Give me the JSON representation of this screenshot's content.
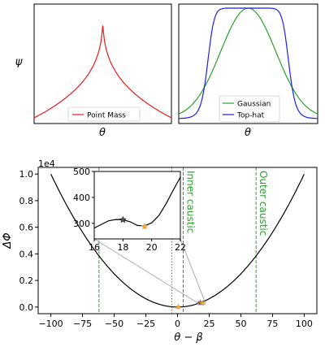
{
  "chart_data": [
    {
      "type": "line",
      "xlabel": "θ",
      "ylabel": "ψ",
      "series": [
        {
          "name": "Point Mass",
          "color": "#e41a1c",
          "profile": "cusp"
        }
      ],
      "legend_position": "bottom-center",
      "ticks": "none"
    },
    {
      "type": "line",
      "xlabel": "θ",
      "ylabel": "",
      "series": [
        {
          "name": "Gaussian",
          "color": "#2ca02c",
          "profile": "gaussian"
        },
        {
          "name": "Top-hat",
          "color": "#1f1fe0",
          "profile": "top-hat"
        }
      ],
      "legend_position": "bottom-right",
      "ticks": "none"
    },
    {
      "type": "line",
      "xlabel": "θ − β",
      "ylabel": "ΔΦ",
      "scale_label": "1e4",
      "xlim": [
        -110,
        110
      ],
      "ylim": [
        -0.05,
        1.05
      ],
      "xticks": [
        "−100",
        "−75",
        "−50",
        "−25",
        "0",
        "25",
        "50",
        "75",
        "100"
      ],
      "yticks": [
        "0.0",
        "0.2",
        "0.4",
        "0.6",
        "0.8",
        "1.0"
      ],
      "series": [
        {
          "name": "",
          "color": "#000000",
          "x": [
            -100,
            -80,
            -60,
            -40,
            -20,
            0,
            10,
            17,
            20,
            30,
            50,
            70,
            90,
            100
          ],
          "y": [
            1.0,
            0.64,
            0.36,
            0.16,
            0.04,
            0.0,
            0.01,
            0.0314,
            0.03,
            0.09,
            0.25,
            0.49,
            0.81,
            1.0
          ]
        }
      ],
      "vlines": [
        {
          "x": -62,
          "label": "",
          "color": "#2ca02c",
          "style": "dashed"
        },
        {
          "x": 62,
          "label": "Outer caustic",
          "color": "#2ca02c",
          "style": "dashed"
        },
        {
          "x": 4.5,
          "label": "Inner caustic",
          "color": "#2ca02c",
          "style": "dashed"
        },
        {
          "x": -4.5,
          "label": "",
          "color": "#2ca02c",
          "style": "dotted"
        }
      ],
      "markers": [
        {
          "x": 0.5,
          "y": 0.0,
          "shape": "star",
          "color": "#f0a030"
        },
        {
          "x": 18,
          "y": 0.0314,
          "shape": "star",
          "color": "#555555"
        },
        {
          "x": 19.5,
          "y": 0.029,
          "shape": "star",
          "color": "#f0a030"
        }
      ],
      "inset": {
        "xlim": [
          16,
          22
        ],
        "ylim": [
          240,
          500
        ],
        "xticks": [
          "16",
          "18",
          "20",
          "22"
        ],
        "yticks": [
          "300",
          "400",
          "500"
        ],
        "x": [
          16,
          16.5,
          17,
          17.5,
          18,
          18.5,
          19,
          19.5,
          20,
          20.5,
          21,
          21.5,
          22
        ],
        "y": [
          282,
          296,
          310,
          315,
          314,
          306,
          292,
          290,
          302,
          330,
          375,
          428,
          478
        ],
        "markers": [
          {
            "x": 18,
            "y": 314,
            "shape": "star",
            "color": "#555555"
          },
          {
            "x": 19.5,
            "y": 288,
            "shape": "star",
            "color": "#f0a030"
          }
        ]
      }
    }
  ]
}
